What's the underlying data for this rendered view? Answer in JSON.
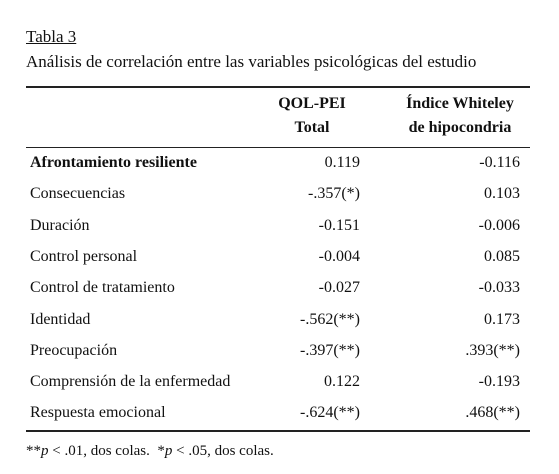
{
  "title": "Tabla 3",
  "subtitle": "Análisis de correlación entre las variables psicológicas del estudio",
  "table": {
    "header": [
      [
        "QOL-PEI",
        "Total"
      ],
      [
        "Índice Whiteley",
        "de hipocondria"
      ]
    ],
    "rows": [
      [
        "Afrontamiento resiliente",
        "0.119",
        "-0.116"
      ],
      [
        "Consecuencias",
        "-.357(*)",
        "0.103"
      ],
      [
        "Duración",
        "-0.151",
        "-0.006"
      ],
      [
        "Control personal",
        "-0.004",
        "0.085"
      ],
      [
        "Control de tratamiento",
        "-0.027",
        "-0.033"
      ],
      [
        "Identidad",
        "-.562(**)",
        "0.173"
      ],
      [
        "Preocupación",
        "-.397(**)",
        ".393(**)"
      ],
      [
        "Comprensión de la enfermedad",
        "0.122",
        "-0.193"
      ],
      [
        "Respuesta emocional",
        "-.624(**)",
        ".468(**)"
      ]
    ]
  },
  "note": [
    "**",
    "p",
    " < .01, dos colas.  *",
    "p",
    " < .05, dos colas."
  ]
}
